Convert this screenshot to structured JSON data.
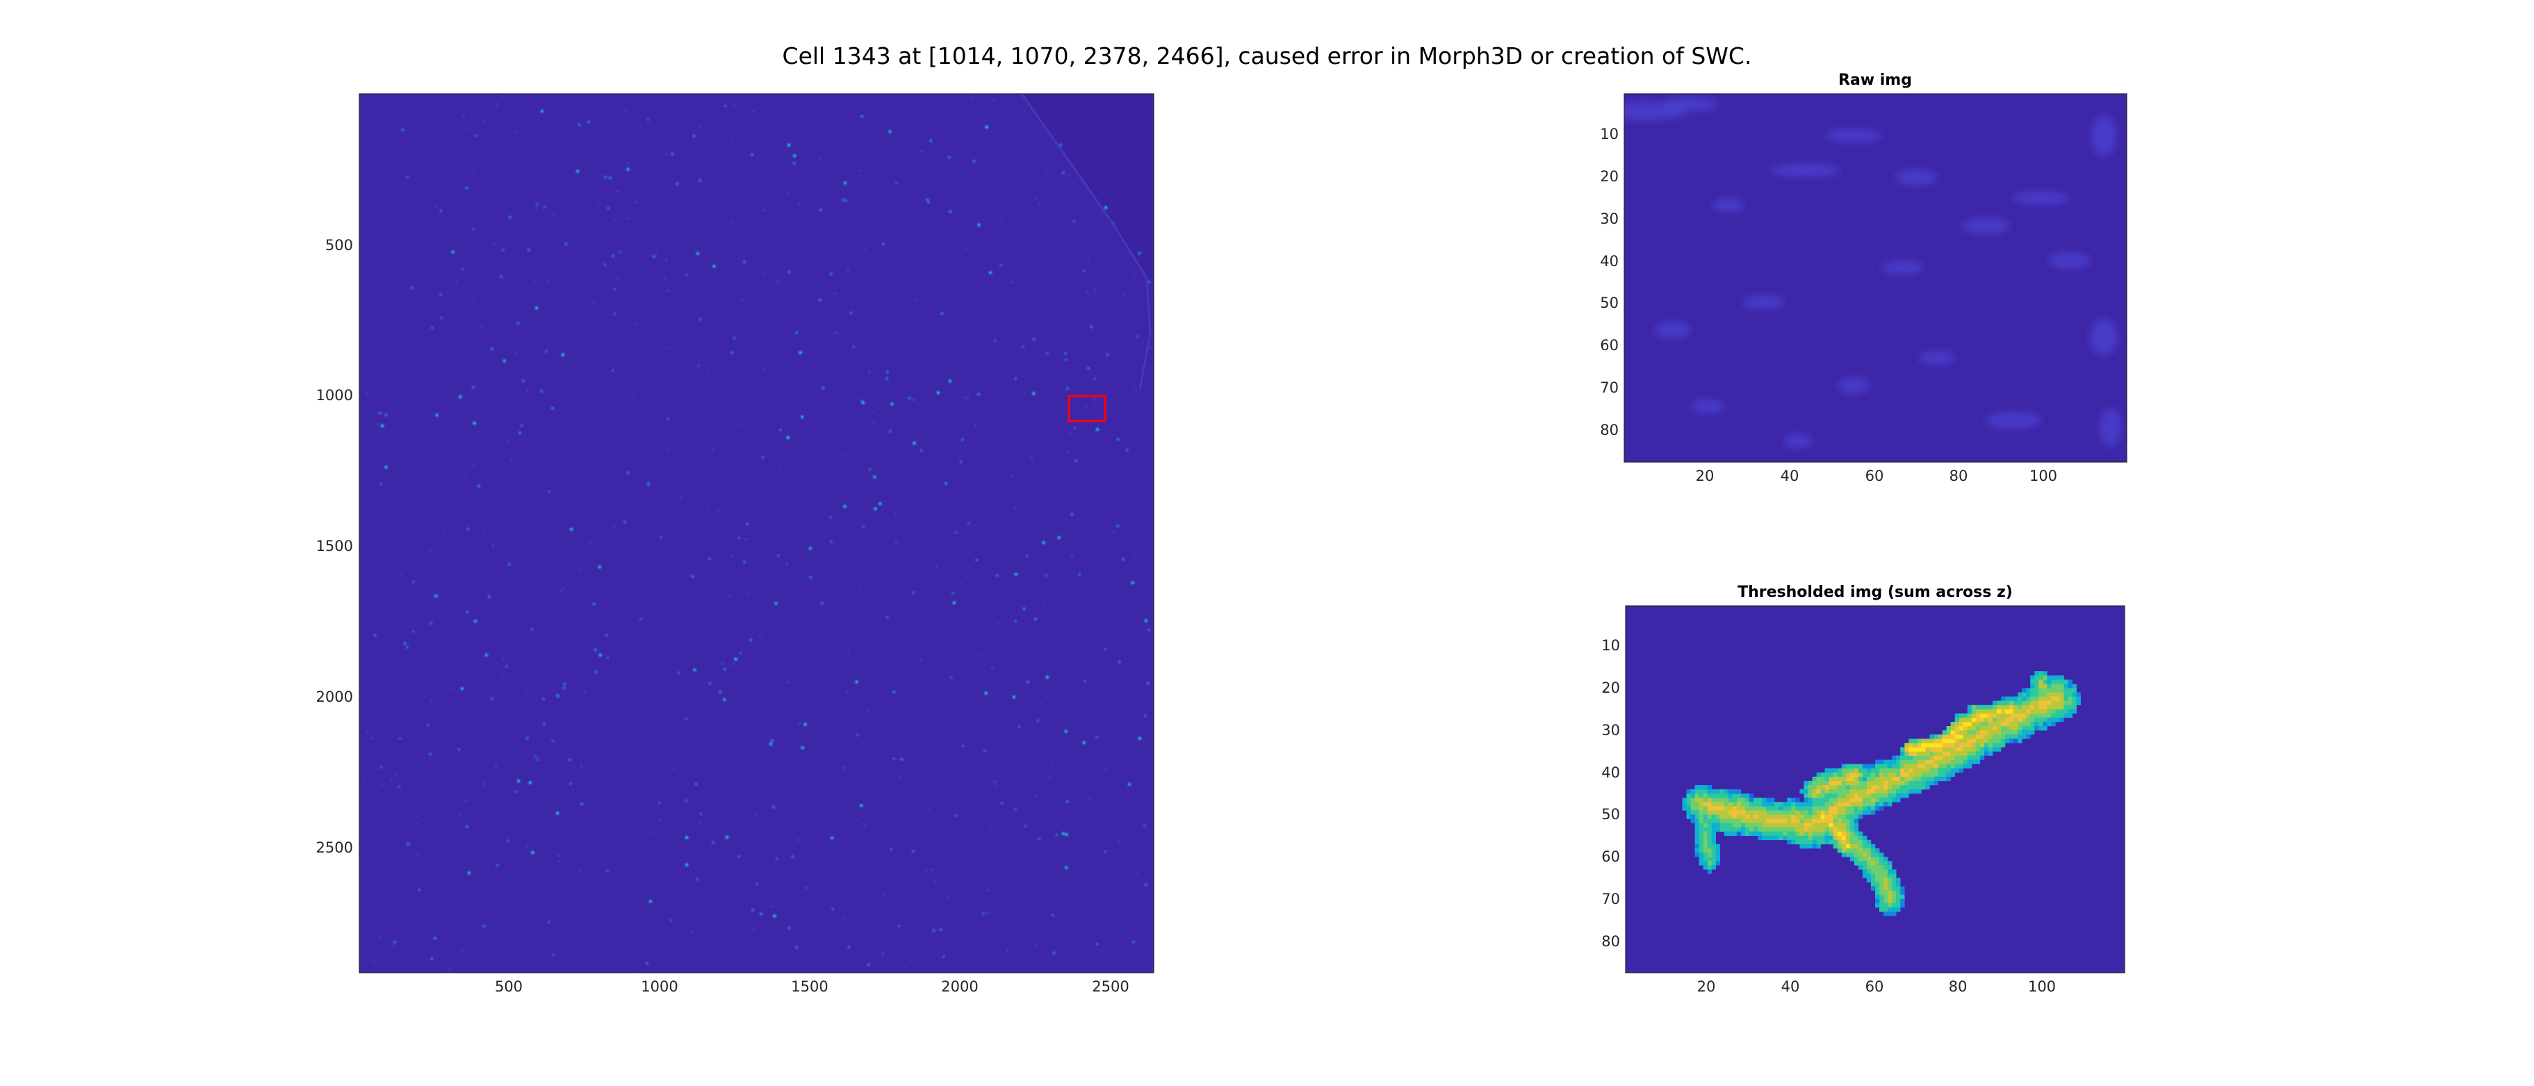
{
  "figure": {
    "title": "Cell 1343 at [1014, 1070, 2378, 2466], caused error in Morph3D or creation of SWC.",
    "background": "#ffffff",
    "colormap": "parula",
    "colors": {
      "image_background": "#3e26a8",
      "roi_box": "#ff0000",
      "parula_yellow": "#f9fb0e",
      "parula_green": "#1ad9a8",
      "parula_cyan": "#0fb6d3"
    }
  },
  "panels": {
    "overview": {
      "title": "",
      "xticks": [
        "500",
        "1000",
        "1500",
        "2000",
        "2500"
      ],
      "yticks": [
        "500",
        "1000",
        "1500",
        "2000",
        "2500"
      ],
      "xlim": [
        0,
        2640
      ],
      "ylim": [
        0,
        2920
      ],
      "roi_box": {
        "x_range": [
          2378,
          2466
        ],
        "y_range": [
          1014,
          1070
        ],
        "color": "#ff0000"
      }
    },
    "raw": {
      "title": "Raw img",
      "xticks": [
        "20",
        "40",
        "60",
        "80",
        "100"
      ],
      "yticks": [
        "10",
        "20",
        "30",
        "40",
        "50",
        "60",
        "70",
        "80"
      ],
      "xlim": [
        0.5,
        119.5
      ],
      "ylim": [
        0.5,
        87.5
      ]
    },
    "thresholded": {
      "title": "Thresholded img (sum across z)",
      "xticks": [
        "20",
        "40",
        "60",
        "80",
        "100"
      ],
      "yticks": [
        "10",
        "20",
        "30",
        "40",
        "50",
        "60",
        "70",
        "80"
      ],
      "xlim": [
        0.5,
        119.5
      ],
      "ylim": [
        0.5,
        87.5
      ]
    }
  }
}
